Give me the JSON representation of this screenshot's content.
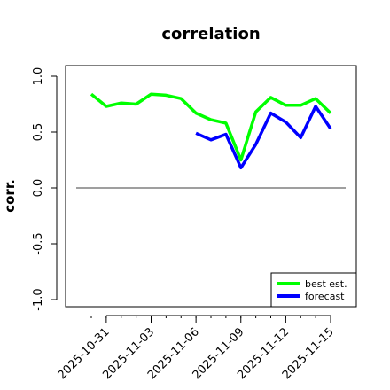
{
  "chart_data": {
    "type": "line",
    "title": "correlation",
    "xlabel": "",
    "ylabel": "corr.",
    "ylim": [
      -1.0,
      1.0
    ],
    "yticks": [
      "-1.0",
      "-0.5",
      "0.0",
      "0.5",
      "1.0"
    ],
    "x": [
      "2025-10-30",
      "2025-10-31",
      "2025-11-01",
      "2025-11-02",
      "2025-11-03",
      "2025-11-04",
      "2025-11-05",
      "2025-11-06",
      "2025-11-07",
      "2025-11-08",
      "2025-11-09",
      "2025-11-10",
      "2025-11-11",
      "2025-11-12",
      "2025-11-13",
      "2025-11-14",
      "2025-11-15"
    ],
    "xticks": [
      "2025-10-31",
      "2025-11-03",
      "2025-11-06",
      "2025-11-09",
      "2025-11-12",
      "2025-11-15"
    ],
    "highlight_tick": "2025-11-06",
    "highlight_color": "#228B22",
    "reference_line": 0.0,
    "legend_position": "bottom-right",
    "series": [
      {
        "name": "best est.",
        "color": "#00ff00",
        "values": [
          0.84,
          0.73,
          0.76,
          0.75,
          0.84,
          0.83,
          0.8,
          0.67,
          0.61,
          0.58,
          0.25,
          0.68,
          0.81,
          0.74,
          0.74,
          0.8,
          0.67
        ]
      },
      {
        "name": "forecast",
        "color": "#0000ff",
        "values": [
          null,
          null,
          null,
          null,
          null,
          null,
          null,
          0.49,
          0.43,
          0.48,
          0.18,
          0.39,
          0.67,
          0.59,
          0.45,
          0.73,
          0.53
        ]
      }
    ]
  }
}
